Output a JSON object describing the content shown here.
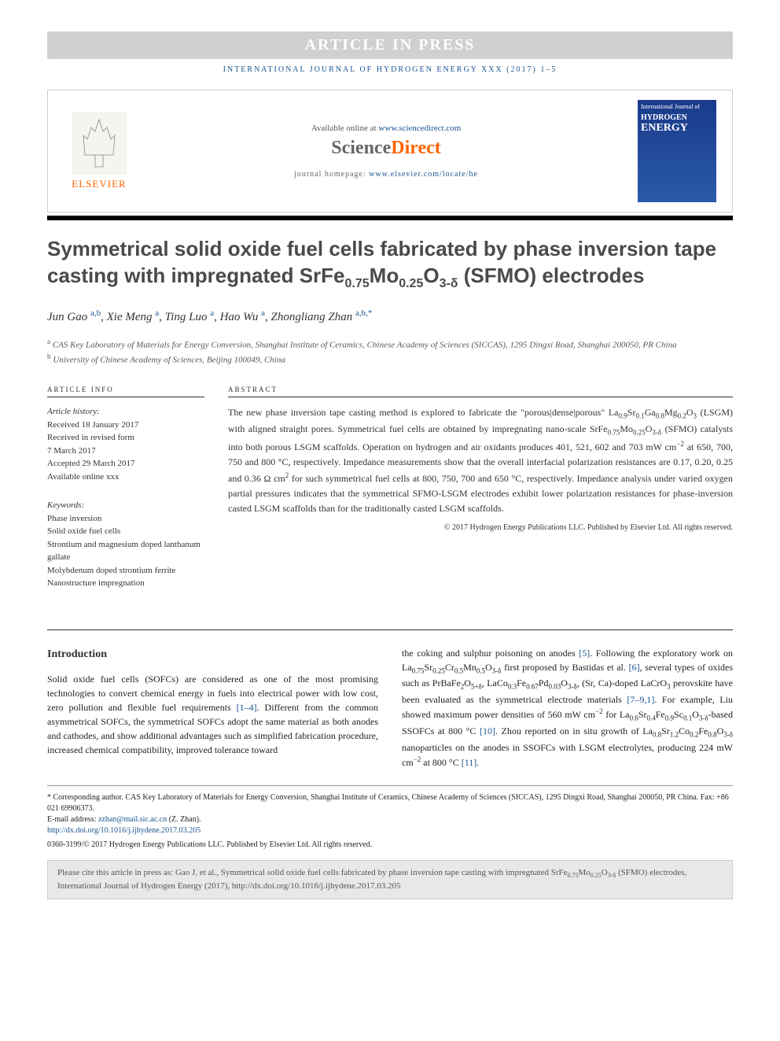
{
  "banner": "ARTICLE IN PRESS",
  "journal_line": "INTERNATIONAL JOURNAL OF HYDROGEN ENERGY XXX (2017) 1–5",
  "header": {
    "elsevier": "ELSEVIER",
    "available": "Available online at ",
    "available_link": "www.sciencedirect.com",
    "sd_prefix": "Science",
    "sd_suffix": "Direct",
    "homepage_label": "journal homepage: ",
    "homepage_link": "www.elsevier.com/locate/he",
    "cover_journal": "International Journal of",
    "cover_hydrogen": "HYDROGEN",
    "cover_energy": "ENERGY"
  },
  "title_html": "Symmetrical solid oxide fuel cells fabricated by phase inversion tape casting with impregnated SrFe<sub>0.75</sub>Mo<sub>0.25</sub>O<sub>3-δ</sub> (SFMO) electrodes",
  "authors_html": "Jun Gao <a>a,b</a>, Xie Meng <a>a</a>, Ting Luo <a>a</a>, Hao Wu <a>a</a>, Zhongliang Zhan <a>a,b,*</a>",
  "affiliations": {
    "a": "CAS Key Laboratory of Materials for Energy Conversion, Shanghai Institute of Ceramics, Chinese Academy of Sciences (SICCAS), 1295 Dingxi Road, Shanghai 200050, PR China",
    "b": "University of Chinese Academy of Sciences, Beijing 100049, China"
  },
  "article_info": {
    "label": "ARTICLE INFO",
    "history_title": "Article history:",
    "received": "Received 18 January 2017",
    "revised": "Received in revised form",
    "revised_date": "7 March 2017",
    "accepted": "Accepted 29 March 2017",
    "online": "Available online xxx",
    "keywords_title": "Keywords:",
    "keywords": [
      "Phase inversion",
      "Solid oxide fuel cells",
      "Strontium and magnesium doped lanthanum gallate",
      "Molybdenum doped strontium ferrite",
      "Nanostructure impregnation"
    ]
  },
  "abstract": {
    "label": "ABSTRACT",
    "text_html": "The new phase inversion tape casting method is explored to fabricate the \"porous|dense|porous\" La<sub>0.9</sub>Sr<sub>0.1</sub>Ga<sub>0.8</sub>Mg<sub>0.2</sub>O<sub>3</sub> (LSGM) with aligned straight pores. Symmetrical fuel cells are obtained by impregnating nano-scale SrFe<sub>0.75</sub>Mo<sub>0.25</sub>O<sub>3-δ</sub> (SFMO) catalysts into both porous LSGM scaffolds. Operation on hydrogen and air oxidants produces 401, 521, 602 and 703 mW cm<sup>−2</sup> at 650, 700, 750 and 800 °C, respectively. Impedance measurements show that the overall interfacial polarization resistances are 0.17, 0.20, 0.25 and 0.36 Ω cm<sup>2</sup> for such symmetrical fuel cells at 800, 750, 700 and 650 °C, respectively. Impedance analysis under varied oxygen partial pressures indicates that the symmetrical SFMO-LSGM electrodes exhibit lower polarization resistances for phase-inversion casted LSGM scaffolds than for the traditionally casted LSGM scaffolds.",
    "copyright": "© 2017 Hydrogen Energy Publications LLC. Published by Elsevier Ltd. All rights reserved."
  },
  "body": {
    "intro_heading": "Introduction",
    "col1_html": "Solid oxide fuel cells (SOFCs) are considered as one of the most promising technologies to convert chemical energy in fuels into electrical power with low cost, zero pollution and flexible fuel requirements <a>[1–4]</a>. Different from the common asymmetrical SOFCs, the symmetrical SOFCs adopt the same material as both anodes and cathodes, and show additional advantages such as simplified fabrication procedure, increased chemical compatibility, improved tolerance toward",
    "col2_html": "the coking and sulphur poisoning on anodes <a>[5]</a>. Following the exploratory work on La<sub>0.75</sub>Sr<sub>0.25</sub>Cr<sub>0.5</sub>Mn<sub>0.5</sub>O<sub>3-δ</sub> first proposed by Bastidas et al. <a>[6]</a>, several types of oxides such as PrBaFe<sub>2</sub>O<sub>5+δ</sub>, LaCo<sub>0.3</sub>Fe<sub>0.67</sub>Pd<sub>0.03</sub>O<sub>3-δ</sub>, (Sr, Ca)-doped LaCrO<sub>3</sub> perovskite have been evaluated as the symmetrical electrode materials <a>[7–9,1]</a>. For example, Liu showed maximum power densities of 560 mW cm<sup>−2</sup> for La<sub>0.6</sub>Sr<sub>0.4</sub>Fe<sub>0.9</sub>Sc<sub>0.1</sub>O<sub>3-δ</sub>-based SSOFCs at 800 °C <a>[10]</a>. Zhou reported on in situ growth of La<sub>0.8</sub>Sr<sub>1.2</sub>Co<sub>0.2</sub>Fe<sub>0.8</sub>O<sub>3-δ</sub> nanoparticles on the anodes in SSOFCs with LSGM electrolytes, producing 224 mW cm<sup>−2</sup> at 800 °C <a>[11]</a>."
  },
  "footnotes": {
    "corresponding": "* Corresponding author. CAS Key Laboratory of Materials for Energy Conversion, Shanghai Institute of Ceramics, Chinese Academy of Sciences (SICCAS), 1295 Dingxi Road, Shanghai 200050, PR China. Fax: +86 021 69906373.",
    "email_label": "E-mail address: ",
    "email": "zzhan@mail.sic.ac.cn",
    "email_suffix": " (Z. Zhan).",
    "doi": "http://dx.doi.org/10.1016/j.ijhydene.2017.03.205",
    "issn": "0360-3199/© 2017 Hydrogen Energy Publications LLC. Published by Elsevier Ltd. All rights reserved."
  },
  "cite_box_html": "Please cite this article in press as: Gao J, et al., Symmetrical solid oxide fuel cells fabricated by phase inversion tape casting with impregnated SrFe<sub>0.75</sub>Mo<sub>0.25</sub>O<sub>3-δ</sub> (SFMO) electrodes, International Journal of Hydrogen Energy (2017), http://dx.doi.org/10.1016/j.ijhydene.2017.03.205",
  "colors": {
    "banner_bg": "#d0d0d0",
    "link": "#1a5490",
    "orange": "#ff6600",
    "cover_bg": "#1a3a8a",
    "cite_bg": "#e8e8e8"
  }
}
